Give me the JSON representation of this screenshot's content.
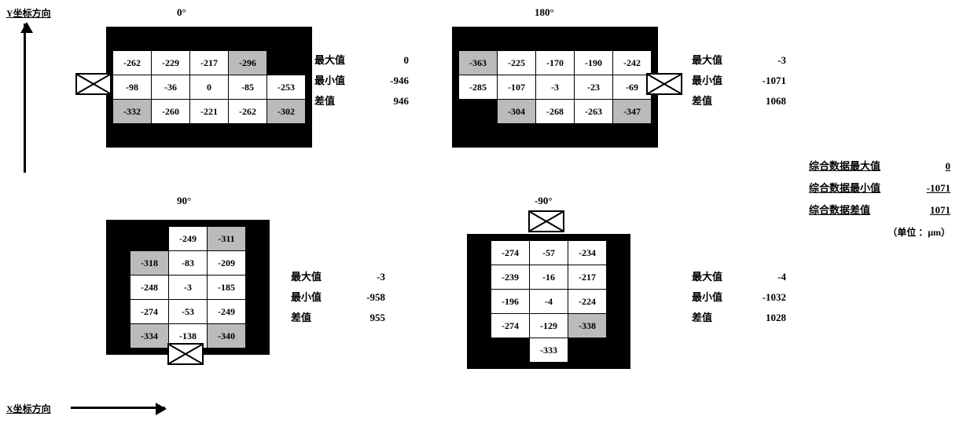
{
  "axes": {
    "y": "Y坐标方向",
    "x": "X坐标方向"
  },
  "colors": {
    "black": "#000000",
    "white": "#ffffff",
    "grey": "#bbbbbb"
  },
  "cell": {
    "w": 46,
    "h": 28
  },
  "panels": {
    "p0": {
      "title": "0°",
      "orientation": "horizontal",
      "rows": [
        [
          {
            "v": "-262",
            "s": "w"
          },
          {
            "v": "-229",
            "s": "w"
          },
          {
            "v": "-217",
            "s": "w"
          },
          {
            "v": "-296",
            "s": "g"
          },
          {
            "v": "",
            "s": "b"
          }
        ],
        [
          {
            "v": "-98",
            "s": "w"
          },
          {
            "v": "-36",
            "s": "w"
          },
          {
            "v": "0",
            "s": "w"
          },
          {
            "v": "-85",
            "s": "w"
          },
          {
            "v": "-253",
            "s": "w"
          }
        ],
        [
          {
            "v": "-332",
            "s": "g"
          },
          {
            "v": "-260",
            "s": "w"
          },
          {
            "v": "-221",
            "s": "w"
          },
          {
            "v": "-262",
            "s": "w"
          },
          {
            "v": "-302",
            "s": "g"
          }
        ]
      ],
      "marker": "left",
      "stats": {
        "max": "0",
        "min": "-946",
        "diff": "946"
      }
    },
    "p180": {
      "title": "180°",
      "orientation": "horizontal",
      "rows": [
        [
          {
            "v": "-363",
            "s": "g"
          },
          {
            "v": "-225",
            "s": "w"
          },
          {
            "v": "-170",
            "s": "w"
          },
          {
            "v": "-190",
            "s": "w"
          },
          {
            "v": "-242",
            "s": "w"
          }
        ],
        [
          {
            "v": "-285",
            "s": "w"
          },
          {
            "v": "-107",
            "s": "w"
          },
          {
            "v": "-3",
            "s": "w"
          },
          {
            "v": "-23",
            "s": "w"
          },
          {
            "v": "-69",
            "s": "w"
          }
        ],
        [
          {
            "v": "",
            "s": "b"
          },
          {
            "v": "-304",
            "s": "g"
          },
          {
            "v": "-268",
            "s": "w"
          },
          {
            "v": "-263",
            "s": "w"
          },
          {
            "v": "-347",
            "s": "g"
          }
        ]
      ],
      "marker": "right",
      "stats": {
        "max": "-3",
        "min": "-1071",
        "diff": "1068"
      }
    },
    "p90": {
      "title": "90°",
      "orientation": "vertical",
      "rows": [
        [
          {
            "v": "",
            "s": "b"
          },
          {
            "v": "-249",
            "s": "w"
          },
          {
            "v": "-311",
            "s": "g"
          }
        ],
        [
          {
            "v": "-318",
            "s": "g"
          },
          {
            "v": "-83",
            "s": "w"
          },
          {
            "v": "-209",
            "s": "w"
          }
        ],
        [
          {
            "v": "-248",
            "s": "w"
          },
          {
            "v": "-3",
            "s": "w"
          },
          {
            "v": "-185",
            "s": "w"
          }
        ],
        [
          {
            "v": "-274",
            "s": "w"
          },
          {
            "v": "-53",
            "s": "w"
          },
          {
            "v": "-249",
            "s": "w"
          }
        ],
        [
          {
            "v": "-334",
            "s": "g"
          },
          {
            "v": "-138",
            "s": "w"
          },
          {
            "v": "-340",
            "s": "g"
          }
        ]
      ],
      "marker": "bottom",
      "stats": {
        "max": "-3",
        "min": "-958",
        "diff": "955"
      }
    },
    "pm90": {
      "title": "-90°",
      "orientation": "vertical",
      "rows": [
        [
          {
            "v": "-274",
            "s": "w"
          },
          {
            "v": "-57",
            "s": "w"
          },
          {
            "v": "-234",
            "s": "w"
          }
        ],
        [
          {
            "v": "-239",
            "s": "w"
          },
          {
            "v": "-16",
            "s": "w"
          },
          {
            "v": "-217",
            "s": "w"
          }
        ],
        [
          {
            "v": "-196",
            "s": "w"
          },
          {
            "v": "-4",
            "s": "w"
          },
          {
            "v": "-224",
            "s": "w"
          }
        ],
        [
          {
            "v": "-274",
            "s": "w"
          },
          {
            "v": "-129",
            "s": "w"
          },
          {
            "v": "-338",
            "s": "g"
          }
        ],
        [
          {
            "v": "",
            "s": "b"
          },
          {
            "v": "-333",
            "s": "w"
          },
          {
            "v": "",
            "s": "b"
          }
        ]
      ],
      "marker": "top",
      "stats": {
        "max": "-4",
        "min": "-1032",
        "diff": "1028"
      }
    }
  },
  "stat_labels": {
    "max": "最大值",
    "min": "最小值",
    "diff": "差值"
  },
  "summary": {
    "max_label": "综合数据最大值",
    "max": "0",
    "min_label": "综合数据最小值",
    "min": "-1071",
    "diff_label": "综合数据差值",
    "diff": "1071",
    "unit": "（单位 ：μm）"
  }
}
